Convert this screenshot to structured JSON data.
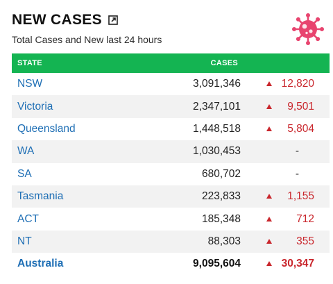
{
  "header": {
    "title": "NEW CASES",
    "subtitle": "Total Cases and New last 24 hours"
  },
  "table": {
    "columns": {
      "state": "STATE",
      "cases": "CASES",
      "new": ""
    },
    "rows": [
      {
        "state": "NSW",
        "total": "3,091,346",
        "new": "12,820"
      },
      {
        "state": "Victoria",
        "total": "2,347,101",
        "new": "9,501"
      },
      {
        "state": "Queensland",
        "total": "1,448,518",
        "new": "5,804"
      },
      {
        "state": "WA",
        "total": "1,030,453",
        "new": "-"
      },
      {
        "state": "SA",
        "total": "680,702",
        "new": "-"
      },
      {
        "state": "Tasmania",
        "total": "223,833",
        "new": "1,155"
      },
      {
        "state": "ACT",
        "total": "185,348",
        "new": "712"
      },
      {
        "state": "NT",
        "total": "88,303",
        "new": "355"
      }
    ],
    "total_row": {
      "state": "Australia",
      "total": "9,095,604",
      "new": "30,347"
    }
  },
  "icons": {
    "popout": "popout-icon",
    "virus": "virus-icon",
    "increase": "up-triangle-icon"
  },
  "colors": {
    "header_green": "#14b452",
    "state_link_blue": "#1f6fb5",
    "increase_red": "#c9262c",
    "virus_pink": "#e8446f"
  }
}
